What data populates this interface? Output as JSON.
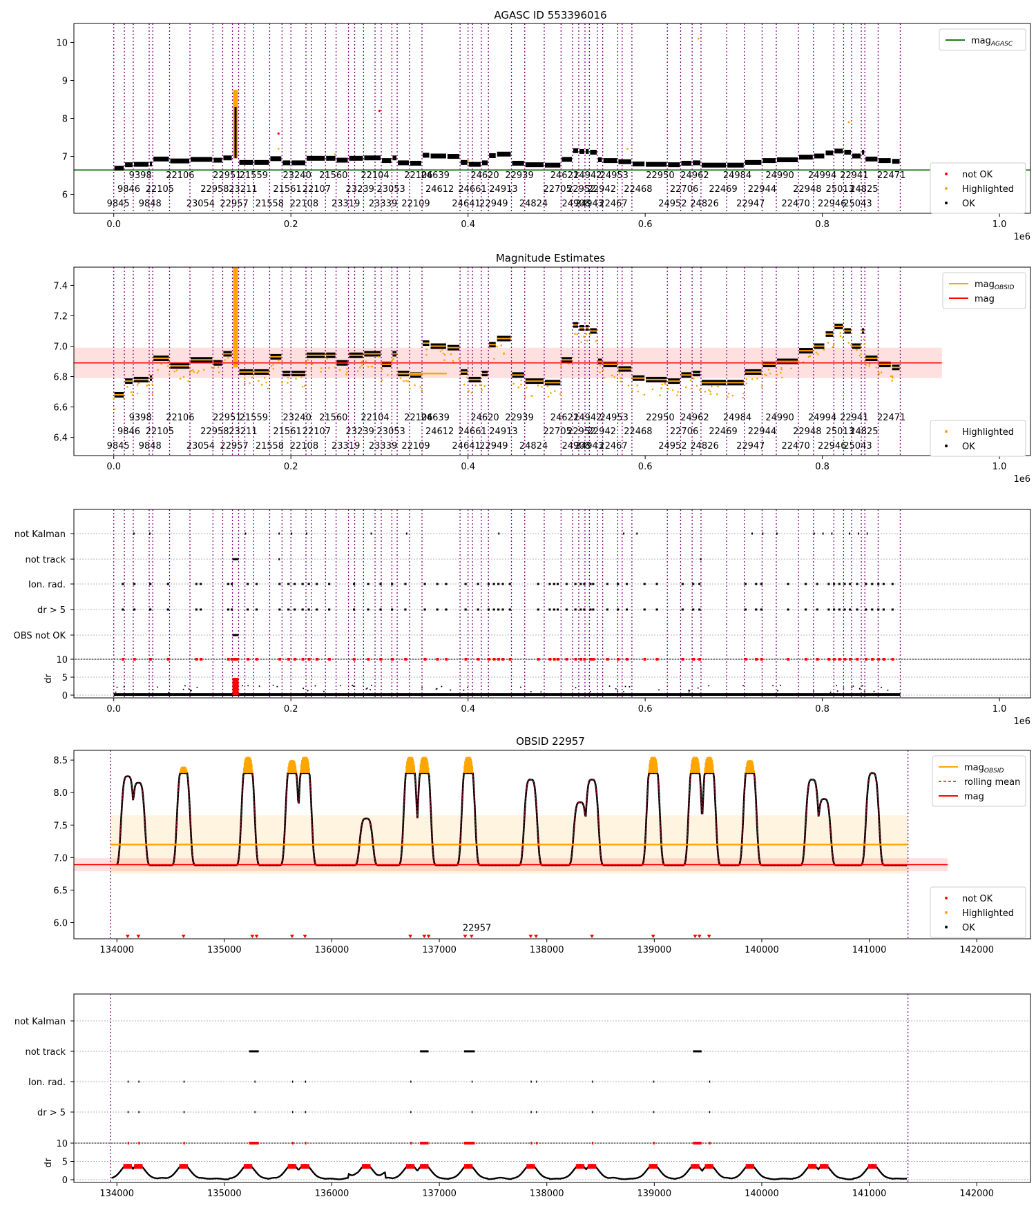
{
  "chart_data": [
    {
      "type": "scatter",
      "panel": "agasc-magnitude-history",
      "title": "AGASC ID 553396016",
      "xlim": [
        -45000,
        1035000
      ],
      "ylim": [
        5.5,
        10.5
      ],
      "x_ticks": [
        0,
        200000,
        400000,
        600000,
        800000,
        1000000
      ],
      "x_tick_labels": [
        "0.0",
        "0.2",
        "0.4",
        "0.6",
        "0.8",
        "1.0"
      ],
      "x_offset_label": "1e6",
      "y_ticks": [
        6,
        7,
        8,
        9,
        10
      ],
      "y_tick_labels": [
        "6",
        "7",
        "8",
        "9",
        "10"
      ],
      "legend_position": "upper-right + lower-right",
      "legend_top": [
        {
          "label": "mag",
          "sub": "AGASC",
          "kind": "line",
          "color": "#1a7a1a"
        }
      ],
      "legend_bottom": [
        {
          "label": "not OK",
          "kind": "dot",
          "color": "#ff0000"
        },
        {
          "label": "Highlighted",
          "kind": "dot",
          "color": "#ffa500"
        },
        {
          "label": "OK",
          "kind": "dot",
          "color": "#000000"
        }
      ],
      "series": [
        {
          "name": "mag_AGASC",
          "value": 6.64,
          "color": "#1a7a1a"
        }
      ]
    },
    {
      "type": "scatter",
      "panel": "magnitude-estimates",
      "title": "Magnitude Estimates",
      "xlim": [
        -45000,
        1035000
      ],
      "ylim": [
        6.28,
        7.52
      ],
      "x_ticks": [
        0,
        200000,
        400000,
        600000,
        800000,
        1000000
      ],
      "x_tick_labels": [
        "0.0",
        "0.2",
        "0.4",
        "0.6",
        "0.8",
        "1.0"
      ],
      "x_offset_label": "1e6",
      "y_ticks": [
        6.4,
        6.6,
        6.8,
        7.0,
        7.2,
        7.4
      ],
      "y_tick_labels": [
        "6.4",
        "6.6",
        "6.8",
        "7.0",
        "7.2",
        "7.4"
      ],
      "legend_position": "upper-right + lower-right",
      "legend_top": [
        {
          "label": "mag",
          "sub": "OBSID",
          "kind": "line",
          "color": "#ffa500"
        },
        {
          "label": "mag",
          "kind": "line",
          "color": "#ff0000"
        }
      ],
      "legend_bottom": [
        {
          "label": "Highlighted",
          "kind": "dot",
          "color": "#ffa500"
        },
        {
          "label": "OK",
          "kind": "dot",
          "color": "#000000"
        }
      ],
      "series": [
        {
          "name": "mag",
          "value": 6.89,
          "band": [
            6.79,
            6.99
          ],
          "color": "#ff0000"
        }
      ]
    },
    {
      "type": "scatter",
      "panel": "flags-all",
      "xlim": [
        -45000,
        1035000
      ],
      "x_ticks": [
        0,
        200000,
        400000,
        600000,
        800000,
        1000000
      ],
      "x_tick_labels": [
        "0.0",
        "0.2",
        "0.4",
        "0.6",
        "0.8",
        "1.0"
      ],
      "x_offset_label": "1e6",
      "flag_rows": [
        "not Kalman",
        "not track",
        "Ion. rad.",
        "dr > 5",
        "OBS not OK"
      ],
      "dr_ylabel": "dr",
      "dr_ticks": [
        "0",
        "5",
        "10"
      ]
    },
    {
      "type": "scatter",
      "panel": "obsid-detail",
      "title": "OBSID 22957",
      "xlim": [
        133600,
        142500
      ],
      "ylim": [
        5.75,
        8.65
      ],
      "x_ticks": [
        134000,
        135000,
        136000,
        137000,
        138000,
        139000,
        140000,
        141000,
        142000
      ],
      "x_tick_labels": [
        "134000",
        "135000",
        "136000",
        "137000",
        "138000",
        "139000",
        "140000",
        "141000",
        "142000"
      ],
      "y_ticks": [
        6.0,
        6.5,
        7.0,
        7.5,
        8.0,
        8.5
      ],
      "y_tick_labels": [
        "6.0",
        "6.5",
        "7.0",
        "7.5",
        "8.0",
        "8.5"
      ],
      "obs_start": 133940,
      "obs_end": 141360,
      "obsid_label": "22957",
      "obsid_label_x": 137350,
      "legend_position": "upper-right + lower-right",
      "legend_top": [
        {
          "label": "mag",
          "sub": "OBSID",
          "kind": "line",
          "color": "#ffa500"
        },
        {
          "label": "rolling mean",
          "kind": "dashed",
          "color": "#ff0000"
        },
        {
          "label": "mag",
          "kind": "line",
          "color": "#ff0000"
        }
      ],
      "legend_bottom": [
        {
          "label": "not OK",
          "kind": "dot",
          "color": "#ff0000"
        },
        {
          "label": "Highlighted",
          "kind": "dot",
          "color": "#ffa500"
        },
        {
          "label": "OK",
          "kind": "dot",
          "color": "#000000"
        }
      ],
      "series": [
        {
          "name": "mag_OBSID",
          "value": 7.2,
          "band": [
            6.75,
            7.65
          ],
          "color": "#ffa500"
        },
        {
          "name": "mag",
          "value": 6.89,
          "band": [
            6.79,
            6.99
          ],
          "color": "#ff0000"
        }
      ],
      "peaks": [
        {
          "x": 134100,
          "h": 8.25
        },
        {
          "x": 134200,
          "h": 8.15
        },
        {
          "x": 134620,
          "h": 8.4
        },
        {
          "x": 135220,
          "h": 8.6
        },
        {
          "x": 135630,
          "h": 8.5
        },
        {
          "x": 135750,
          "h": 8.6
        },
        {
          "x": 136320,
          "h": 7.6
        },
        {
          "x": 136730,
          "h": 8.6
        },
        {
          "x": 136860,
          "h": 8.6
        },
        {
          "x": 137270,
          "h": 8.6
        },
        {
          "x": 137850,
          "h": 8.2
        },
        {
          "x": 138310,
          "h": 7.85
        },
        {
          "x": 138420,
          "h": 8.2
        },
        {
          "x": 138990,
          "h": 8.6
        },
        {
          "x": 139380,
          "h": 8.6
        },
        {
          "x": 139510,
          "h": 8.6
        },
        {
          "x": 139890,
          "h": 8.5
        },
        {
          "x": 140470,
          "h": 8.2
        },
        {
          "x": 140580,
          "h": 7.9
        },
        {
          "x": 141030,
          "h": 8.3
        }
      ],
      "not_ok_markers": [
        134100,
        134200,
        134620,
        135260,
        135300,
        135630,
        135750,
        136730,
        136860,
        136900,
        137240,
        137300,
        137850,
        137900,
        138420,
        138990,
        139380,
        139420,
        139510
      ]
    },
    {
      "type": "scatter",
      "panel": "flags-obsid",
      "xlim": [
        133600,
        142500
      ],
      "x_ticks": [
        134000,
        135000,
        136000,
        137000,
        138000,
        139000,
        140000,
        141000,
        142000
      ],
      "x_tick_labels": [
        "134000",
        "135000",
        "136000",
        "137000",
        "138000",
        "139000",
        "140000",
        "141000",
        "142000"
      ],
      "flag_rows": [
        "not Kalman",
        "not track",
        "Ion. rad.",
        "dr > 5"
      ],
      "dr_ylabel": "dr",
      "dr_ticks": [
        "0",
        "5",
        "10"
      ]
    }
  ],
  "obs_boundaries": [
    0,
    12000,
    22000,
    40000,
    44000,
    63000,
    86000,
    112000,
    123000,
    134000,
    141000,
    148000,
    158000,
    176000,
    190000,
    200000,
    217000,
    223000,
    239000,
    251000,
    265000,
    272000,
    282000,
    295000,
    302000,
    314000,
    320000,
    334000,
    348000,
    391000,
    400000,
    405000,
    415000,
    423000,
    449000,
    464000,
    486000,
    505000,
    518000,
    525000,
    532000,
    537000,
    546000,
    552000,
    569000,
    574000,
    585000,
    625000,
    640000,
    653000,
    663000,
    692000,
    712000,
    732000,
    748000,
    773000,
    790000,
    813000,
    824000,
    833000,
    844000,
    848000,
    863000,
    888000
  ],
  "obsid_labels": {
    "row1": [
      {
        "x": 30000,
        "t": "9398"
      },
      {
        "x": 75000,
        "t": "22106"
      },
      {
        "x": 128000,
        "t": "22951"
      },
      {
        "x": 158000,
        "t": "21559"
      },
      {
        "x": 207000,
        "t": "23240"
      },
      {
        "x": 248000,
        "t": "21560"
      },
      {
        "x": 295000,
        "t": "22104"
      },
      {
        "x": 344000,
        "t": "22106"
      },
      {
        "x": 363000,
        "t": "24639"
      },
      {
        "x": 419000,
        "t": "24620"
      },
      {
        "x": 458000,
        "t": "22939"
      },
      {
        "x": 509000,
        "t": "24621"
      },
      {
        "x": 535000,
        "t": "24942"
      },
      {
        "x": 565000,
        "t": "24953"
      },
      {
        "x": 617000,
        "t": "22950"
      },
      {
        "x": 656000,
        "t": "24962"
      },
      {
        "x": 704000,
        "t": "24984"
      },
      {
        "x": 752000,
        "t": "24990"
      },
      {
        "x": 800000,
        "t": "24994"
      },
      {
        "x": 836000,
        "t": "22941"
      },
      {
        "x": 878000,
        "t": "22471"
      }
    ],
    "row2": [
      {
        "x": 17000,
        "t": "9846"
      },
      {
        "x": 52000,
        "t": "22105"
      },
      {
        "x": 114000,
        "t": "22958"
      },
      {
        "x": 146000,
        "t": "23211"
      },
      {
        "x": 196000,
        "t": "21561"
      },
      {
        "x": 229000,
        "t": "22107"
      },
      {
        "x": 278000,
        "t": "23239"
      },
      {
        "x": 313000,
        "t": "23053"
      },
      {
        "x": 368000,
        "t": "24612"
      },
      {
        "x": 405000,
        "t": "24661"
      },
      {
        "x": 440000,
        "t": "24913"
      },
      {
        "x": 501000,
        "t": "22705"
      },
      {
        "x": 528000,
        "t": "22952"
      },
      {
        "x": 551000,
        "t": "22942"
      },
      {
        "x": 592000,
        "t": "22468"
      },
      {
        "x": 644000,
        "t": "22706"
      },
      {
        "x": 688000,
        "t": "22469"
      },
      {
        "x": 732000,
        "t": "22944"
      },
      {
        "x": 783000,
        "t": "22948"
      },
      {
        "x": 820000,
        "t": "25013"
      },
      {
        "x": 847000,
        "t": "24825"
      }
    ],
    "row3": [
      {
        "x": 5000,
        "t": "9845"
      },
      {
        "x": 41000,
        "t": "9848"
      },
      {
        "x": 98000,
        "t": "23054"
      },
      {
        "x": 136000,
        "t": "22957"
      },
      {
        "x": 176000,
        "t": "21558"
      },
      {
        "x": 215000,
        "t": "22108"
      },
      {
        "x": 262000,
        "t": "23319"
      },
      {
        "x": 304000,
        "t": "23339"
      },
      {
        "x": 341000,
        "t": "22109"
      },
      {
        "x": 398000,
        "t": "24641"
      },
      {
        "x": 429000,
        "t": "22949"
      },
      {
        "x": 474000,
        "t": "24824"
      },
      {
        "x": 522000,
        "t": "24908"
      },
      {
        "x": 537000,
        "t": "24943"
      },
      {
        "x": 564000,
        "t": "22467"
      },
      {
        "x": 631000,
        "t": "24952"
      },
      {
        "x": 667000,
        "t": "24826"
      },
      {
        "x": 719000,
        "t": "22947"
      },
      {
        "x": 770000,
        "t": "22470"
      },
      {
        "x": 811000,
        "t": "22946"
      },
      {
        "x": 840000,
        "t": "25043"
      }
    ]
  },
  "obsid_segments": [
    [
      0,
      12000,
      6.68
    ],
    [
      12000,
      22000,
      6.77
    ],
    [
      22000,
      40000,
      6.78
    ],
    [
      40000,
      44000,
      6.79
    ],
    [
      44000,
      63000,
      6.92
    ],
    [
      63000,
      86000,
      6.87
    ],
    [
      86000,
      112000,
      6.91
    ],
    [
      112000,
      123000,
      6.89
    ],
    [
      123000,
      134000,
      6.95
    ],
    [
      134000,
      141000,
      7.2
    ],
    [
      141000,
      158000,
      6.83
    ],
    [
      158000,
      176000,
      6.83
    ],
    [
      176000,
      190000,
      6.93
    ],
    [
      190000,
      200000,
      6.82
    ],
    [
      200000,
      217000,
      6.82
    ],
    [
      217000,
      239000,
      6.94
    ],
    [
      239000,
      251000,
      6.94
    ],
    [
      251000,
      265000,
      6.89
    ],
    [
      265000,
      282000,
      6.94
    ],
    [
      282000,
      302000,
      6.95
    ],
    [
      302000,
      314000,
      6.88
    ],
    [
      314000,
      320000,
      6.95
    ],
    [
      320000,
      334000,
      6.82
    ],
    [
      334000,
      348000,
      6.81
    ],
    [
      348000,
      357000,
      7.02
    ],
    [
      357000,
      376000,
      7.0
    ],
    [
      376000,
      391000,
      6.99
    ],
    [
      391000,
      400000,
      6.83
    ],
    [
      400000,
      415000,
      6.78
    ],
    [
      415000,
      423000,
      6.82
    ],
    [
      423000,
      432000,
      7.01
    ],
    [
      432000,
      449000,
      7.05
    ],
    [
      449000,
      464000,
      6.81
    ],
    [
      464000,
      486000,
      6.77
    ],
    [
      486000,
      505000,
      6.76
    ],
    [
      505000,
      518000,
      6.91
    ],
    [
      518000,
      525000,
      7.14
    ],
    [
      525000,
      532000,
      7.12
    ],
    [
      532000,
      537000,
      7.12
    ],
    [
      537000,
      546000,
      7.1
    ],
    [
      546000,
      552000,
      6.9
    ],
    [
      552000,
      569000,
      6.88
    ],
    [
      569000,
      585000,
      6.85
    ],
    [
      585000,
      600000,
      6.79
    ],
    [
      600000,
      625000,
      6.78
    ],
    [
      625000,
      640000,
      6.77
    ],
    [
      640000,
      653000,
      6.81
    ],
    [
      653000,
      663000,
      6.82
    ],
    [
      663000,
      692000,
      6.76
    ],
    [
      692000,
      712000,
      6.76
    ],
    [
      712000,
      732000,
      6.83
    ],
    [
      732000,
      748000,
      6.88
    ],
    [
      748000,
      773000,
      6.9
    ],
    [
      773000,
      790000,
      6.97
    ],
    [
      790000,
      803000,
      7.0
    ],
    [
      803000,
      813000,
      7.08
    ],
    [
      813000,
      824000,
      7.13
    ],
    [
      824000,
      833000,
      7.1
    ],
    [
      833000,
      844000,
      7.0
    ],
    [
      844000,
      848000,
      7.1
    ],
    [
      848000,
      863000,
      6.92
    ],
    [
      863000,
      878000,
      6.88
    ],
    [
      878000,
      888000,
      6.86
    ]
  ]
}
